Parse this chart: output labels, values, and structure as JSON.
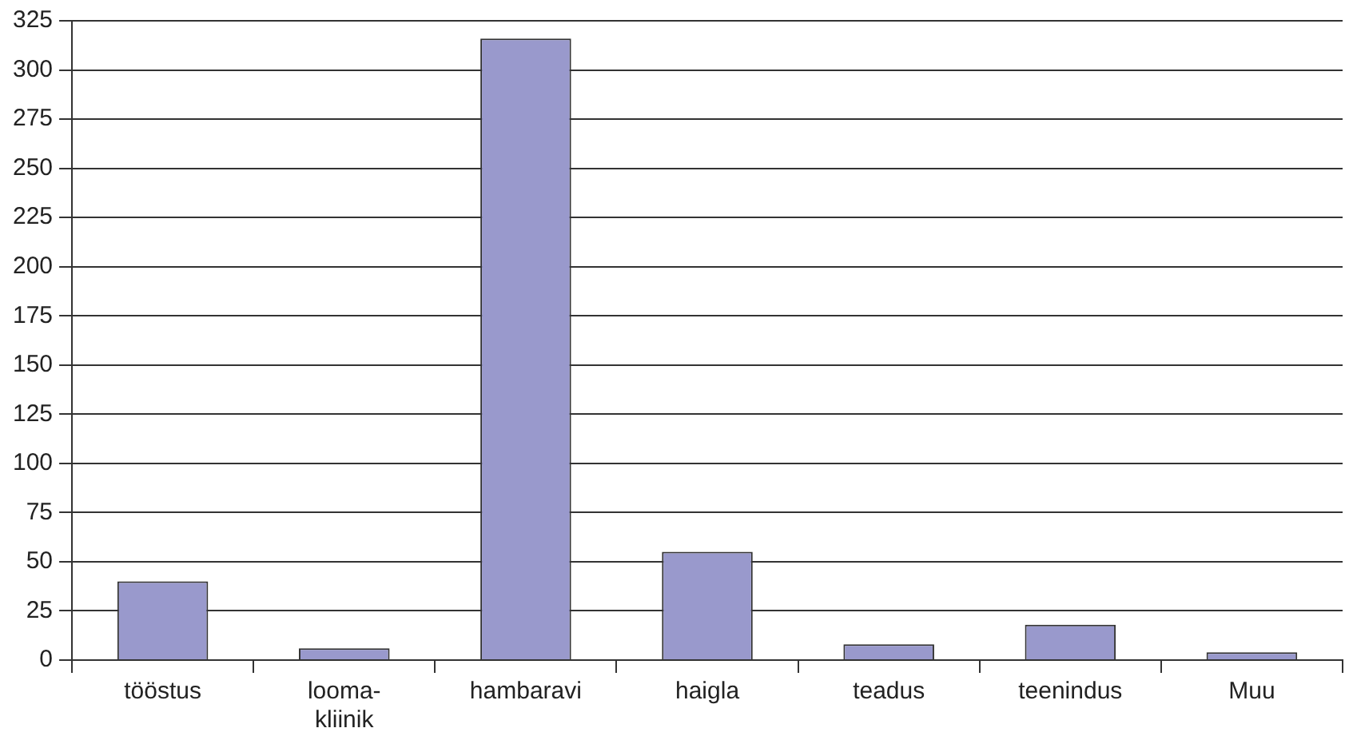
{
  "chart_data": {
    "type": "bar",
    "categories": [
      "tööstus",
      "looma-\nkliinik",
      "hambaravi",
      "haigla",
      "teadus",
      "teenindus",
      "Muu"
    ],
    "values": [
      40,
      6,
      316,
      55,
      8,
      18,
      4
    ],
    "color": "#9999cc",
    "ylim": [
      0,
      325
    ],
    "yticks": [
      0,
      25,
      50,
      75,
      100,
      125,
      150,
      175,
      200,
      225,
      250,
      275,
      300,
      325
    ],
    "grid": "y",
    "legend": false
  }
}
